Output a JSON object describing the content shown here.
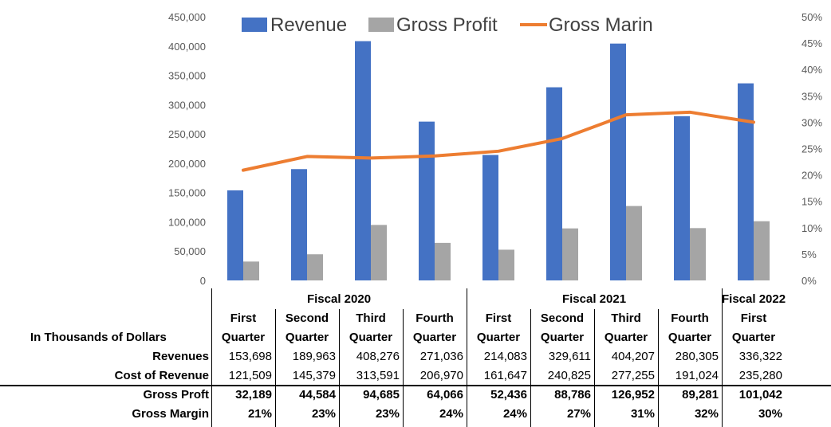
{
  "chart_data": {
    "type": "bar",
    "categories": [
      "Q1 FY2020",
      "Q2 FY2020",
      "Q3 FY2020",
      "Q4 FY2020",
      "Q1 FY2021",
      "Q2 FY2021",
      "Q3 FY2021",
      "Q4 FY2021",
      "Q1 FY2022"
    ],
    "series": [
      {
        "name": "Revenue",
        "type": "bar",
        "axis": "left",
        "color": "#4472C4",
        "values": [
          153698,
          189963,
          408276,
          271036,
          214083,
          329611,
          404207,
          280305,
          336322
        ]
      },
      {
        "name": "Gross Profit",
        "type": "bar",
        "axis": "left",
        "color": "#A5A5A5",
        "values": [
          32189,
          44584,
          94685,
          64066,
          52436,
          88786,
          126952,
          89281,
          101042
        ]
      },
      {
        "name": "Gross Marin",
        "type": "line",
        "axis": "right",
        "color": "#ED7D31",
        "values": [
          20.9,
          23.5,
          23.2,
          23.6,
          24.5,
          26.9,
          31.4,
          31.9,
          30.0
        ]
      }
    ],
    "ylim": [
      0,
      450000
    ],
    "y2lim": [
      0,
      50
    ],
    "y_ticks": [
      "0",
      "50,000",
      "100,000",
      "150,000",
      "200,000",
      "250,000",
      "300,000",
      "350,000",
      "400,000",
      "450,000"
    ],
    "y2_ticks": [
      "0%",
      "5%",
      "10%",
      "15%",
      "20%",
      "25%",
      "30%",
      "35%",
      "40%",
      "45%",
      "50%"
    ],
    "legend": "top",
    "grid": false
  },
  "table": {
    "row_header_title": "In Thousands of Dollars",
    "fiscal_groups": [
      "Fiscal 2020",
      "Fiscal 2021",
      "Fiscal 2022"
    ],
    "quarters": [
      {
        "line1": "First",
        "line2": "Quarter"
      },
      {
        "line1": "Second",
        "line2": "Quarter"
      },
      {
        "line1": "Third",
        "line2": "Quarter"
      },
      {
        "line1": "Fourth",
        "line2": "Quarter"
      },
      {
        "line1": "First",
        "line2": "Quarter"
      },
      {
        "line1": "Second",
        "line2": "Quarter"
      },
      {
        "line1": "Third",
        "line2": "Quarter"
      },
      {
        "line1": "Fourth",
        "line2": "Quarter"
      },
      {
        "line1": "First",
        "line2": "Quarter"
      }
    ],
    "rows": [
      {
        "label": "Revenues",
        "bold": false,
        "values": [
          "153,698",
          "189,963",
          "408,276",
          "271,036",
          "214,083",
          "329,611",
          "404,207",
          "280,305",
          "336,322"
        ]
      },
      {
        "label": "Cost of Revenue",
        "bold": false,
        "values": [
          "121,509",
          "145,379",
          "313,591",
          "206,970",
          "161,647",
          "240,825",
          "277,255",
          "191,024",
          "235,280"
        ]
      },
      {
        "label": "Gross Proft",
        "bold": true,
        "values": [
          "32,189",
          "44,584",
          "94,685",
          "64,066",
          "52,436",
          "88,786",
          "126,952",
          "89,281",
          "101,042"
        ]
      },
      {
        "label": "Gross Margin",
        "bold": true,
        "values": [
          "21%",
          "23%",
          "23%",
          "24%",
          "24%",
          "27%",
          "31%",
          "32%",
          "30%"
        ]
      }
    ]
  }
}
